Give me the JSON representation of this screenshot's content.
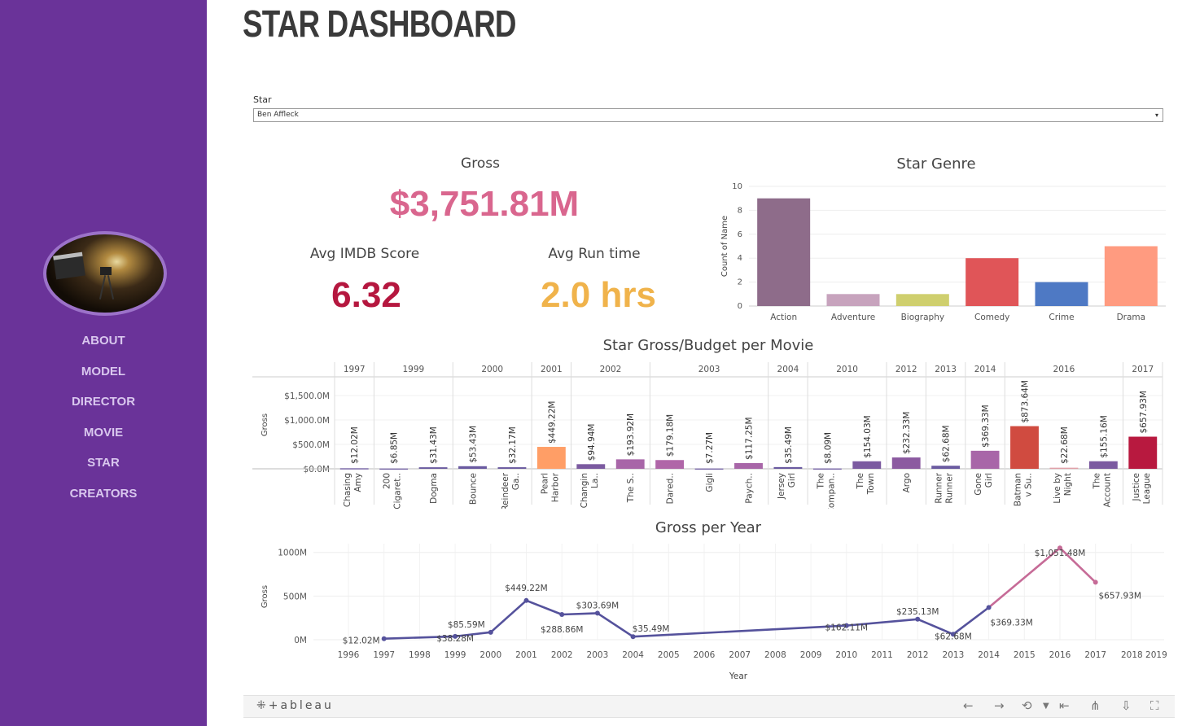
{
  "title": "STAR DASHBOARD",
  "nav": [
    {
      "label": "ABOUT",
      "name": "nav-about"
    },
    {
      "label": "MODEL",
      "name": "nav-model"
    },
    {
      "label": "DIRECTOR",
      "name": "nav-director"
    },
    {
      "label": "MOVIE",
      "name": "nav-movie"
    },
    {
      "label": "STAR",
      "name": "nav-star"
    },
    {
      "label": "CREATORS",
      "name": "nav-creators"
    }
  ],
  "filter": {
    "label": "Star",
    "value": "Ben Affleck",
    "arrow": "▾"
  },
  "kpis": {
    "gross": {
      "title": "Gross",
      "value": "$3,751.81M",
      "color": "#d9668e"
    },
    "imdb": {
      "title": "Avg IMDB Score",
      "value": "6.32",
      "color": "#b5173f"
    },
    "runtime": {
      "title": "Avg Run time",
      "value": "2.0 hrs",
      "color": "#f0b34b"
    }
  },
  "footer": {
    "logo": "⁜+ableau",
    "icons": [
      "left-arrow-icon",
      "right-arrow-icon",
      "revert-icon",
      "chevron-down-icon",
      "first-icon",
      "share-icon",
      "download-icon",
      "fullscreen-icon"
    ]
  },
  "chart_data": [
    {
      "type": "bar",
      "title": "Star Genre",
      "ylabel": "Count of Name",
      "ylim": [
        0,
        10
      ],
      "yticks": [
        0,
        2,
        4,
        6,
        8,
        10
      ],
      "categories": [
        "Action",
        "Adventure",
        "Biography",
        "Comedy",
        "Crime",
        "Drama"
      ],
      "values": [
        9,
        1,
        1,
        4,
        2,
        5
      ],
      "colors": [
        "#8e6c8a",
        "#c7a3bd",
        "#cfcf6e",
        "#e05558",
        "#4e79c4",
        "#ff9b80"
      ]
    },
    {
      "type": "bar",
      "title": "Star Gross/Budget per Movie",
      "ylabel": "Gross",
      "ylim": [
        0,
        1800
      ],
      "yticks": [
        {
          "v": 0,
          "label": "$0.0M"
        },
        {
          "v": 500,
          "label": "$500.0M"
        },
        {
          "v": 1000,
          "label": "$1,000.0M"
        },
        {
          "v": 1500,
          "label": "$1,500.0M"
        }
      ],
      "years": [
        {
          "year": "1997",
          "movies": [
            {
              "label": [
                "Chasing",
                "Amy"
              ],
              "value": 12.02,
              "label_value": "$12.02M",
              "color": "#7b6aa8"
            }
          ]
        },
        {
          "year": "1999",
          "movies": [
            {
              "label": [
                "200",
                "Cigaret.."
              ],
              "value": 6.85,
              "label_value": "$6.85M",
              "color": "#7b6aa8"
            },
            {
              "label": [
                "Dogma"
              ],
              "value": 31.43,
              "label_value": "$31.43M",
              "color": "#6a5aa0"
            }
          ]
        },
        {
          "year": "2000",
          "movies": [
            {
              "label": [
                "Bounce"
              ],
              "value": 53.43,
              "label_value": "$53.43M",
              "color": "#6a5aa0"
            },
            {
              "label": [
                "Reindeer",
                "Ga.."
              ],
              "value": 32.17,
              "label_value": "$32.17M",
              "color": "#6a5aa0"
            }
          ]
        },
        {
          "year": "2001",
          "movies": [
            {
              "label": [
                "Pearl",
                "Harbor"
              ],
              "value": 449.22,
              "label_value": "$449.22M",
              "color": "#ff9e66"
            }
          ]
        },
        {
          "year": "2002",
          "movies": [
            {
              "label": [
                "Changin",
                "La.."
              ],
              "value": 94.94,
              "label_value": "$94.94M",
              "color": "#7b5aa0"
            },
            {
              "label": [
                "The S.."
              ],
              "value": 193.92,
              "label_value": "$193.92M",
              "color": "#a866a8"
            }
          ]
        },
        {
          "year": "2003",
          "movies": [
            {
              "label": [
                "Dared.."
              ],
              "value": 179.18,
              "label_value": "$179.18M",
              "color": "#b066a8"
            },
            {
              "label": [
                "Gigli"
              ],
              "value": 7.27,
              "label_value": "$7.27M",
              "color": "#7b6aa8"
            },
            {
              "label": [
                "Paych.."
              ],
              "value": 117.25,
              "label_value": "$117.25M",
              "color": "#a866a8"
            }
          ]
        },
        {
          "year": "2004",
          "movies": [
            {
              "label": [
                "Jersey",
                "Girl"
              ],
              "value": 35.49,
              "label_value": "$35.49M",
              "color": "#6a5aa0"
            }
          ]
        },
        {
          "year": "2010",
          "movies": [
            {
              "label": [
                "The",
                "Compan.."
              ],
              "value": 8.09,
              "label_value": "$8.09M",
              "color": "#7b6aa8"
            },
            {
              "label": [
                "The",
                "Town"
              ],
              "value": 154.03,
              "label_value": "$154.03M",
              "color": "#7b5aa0"
            }
          ]
        },
        {
          "year": "2012",
          "movies": [
            {
              "label": [
                "Argo"
              ],
              "value": 232.33,
              "label_value": "$232.33M",
              "color": "#8c5aa0"
            }
          ]
        },
        {
          "year": "2013",
          "movies": [
            {
              "label": [
                "Runner",
                "Runner"
              ],
              "value": 62.68,
              "label_value": "$62.68M",
              "color": "#6a5aa0"
            }
          ]
        },
        {
          "year": "2014",
          "movies": [
            {
              "label": [
                "Gone",
                "Girl"
              ],
              "value": 369.33,
              "label_value": "$369.33M",
              "color": "#a866a8"
            }
          ]
        },
        {
          "year": "2016",
          "movies": [
            {
              "label": [
                "Batman",
                "v Su.."
              ],
              "value": 873.64,
              "label_value": "$873.64M",
              "color": "#d04b40"
            },
            {
              "label": [
                "Live by",
                "Night"
              ],
              "value": 22.68,
              "label_value": "$22.68M",
              "color": "#e0a0a8"
            },
            {
              "label": [
                "The",
                "Account"
              ],
              "value": 155.16,
              "label_value": "$155.16M",
              "color": "#7b5aa0"
            }
          ]
        },
        {
          "year": "2017",
          "movies": [
            {
              "label": [
                "Justice",
                "League"
              ],
              "value": 657.93,
              "label_value": "$657.93M",
              "color": "#b8193f"
            }
          ]
        }
      ]
    },
    {
      "type": "line",
      "title": "Gross per Year",
      "xlabel": "Year",
      "ylabel": "Gross",
      "ylim": [
        0,
        1100
      ],
      "yticks": [
        {
          "v": 0,
          "label": "0M"
        },
        {
          "v": 500,
          "label": "500M"
        },
        {
          "v": 1000,
          "label": "1000M"
        }
      ],
      "xticks": [
        "1996",
        "1997",
        "1998",
        "1999",
        "2000",
        "2001",
        "2002",
        "2003",
        "2004",
        "2005",
        "2006",
        "2007",
        "2008",
        "2009",
        "2010",
        "2011",
        "2012",
        "2013",
        "2014",
        "2015",
        "2016",
        "2017",
        "2018 2019"
      ],
      "points": [
        {
          "x": 1997,
          "y": 12.02,
          "label": "$12.02M"
        },
        {
          "x": 1999,
          "y": 38.28,
          "label": "$38.28M"
        },
        {
          "x": 2000,
          "y": 85.59,
          "label": "$85.59M"
        },
        {
          "x": 2001,
          "y": 449.22,
          "label": "$449.22M"
        },
        {
          "x": 2002,
          "y": 288.86,
          "label": "$288.86M"
        },
        {
          "x": 2003,
          "y": 303.69,
          "label": "$303.69M"
        },
        {
          "x": 2004,
          "y": 35.49,
          "label": "$35.49M"
        },
        {
          "x": 2010,
          "y": 162.11,
          "label": "$162.11M"
        },
        {
          "x": 2012,
          "y": 235.13,
          "label": "$235.13M"
        },
        {
          "x": 2013,
          "y": 62.68,
          "label": "$62.68M"
        },
        {
          "x": 2014,
          "y": 369.33,
          "label": "$369.33M"
        },
        {
          "x": 2016,
          "y": 1051.48,
          "label": "$1,051.48M"
        },
        {
          "x": 2017,
          "y": 657.93,
          "label": "$657.93M"
        }
      ]
    }
  ]
}
